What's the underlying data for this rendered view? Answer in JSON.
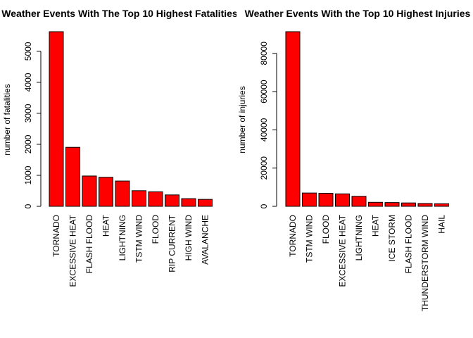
{
  "chart_data": [
    {
      "type": "bar",
      "title": "Weather Events With The Top 10 Highest Fatalities",
      "xlabel": "",
      "ylabel": "number of fatalities",
      "ylim": [
        0,
        5633
      ],
      "yticks": [
        0,
        1000,
        2000,
        3000,
        4000,
        5000
      ],
      "categories": [
        "TORNADO",
        "EXCESSIVE HEAT",
        "FLASH FLOOD",
        "HEAT",
        "LIGHTNING",
        "TSTM WIND",
        "FLOOD",
        "RIP CURRENT",
        "HIGH WIND",
        "AVALANCHE"
      ],
      "values": [
        5633,
        1903,
        978,
        937,
        816,
        504,
        470,
        368,
        248,
        224
      ],
      "bar_color": "#ff0000"
    },
    {
      "type": "bar",
      "title": "Weather Events With the Top 10 Highest Injuries",
      "xlabel": "",
      "ylabel": "number of injuries",
      "ylim": [
        0,
        91346
      ],
      "yticks": [
        0,
        20000,
        40000,
        60000,
        80000
      ],
      "categories": [
        "TORNADO",
        "TSTM WIND",
        "FLOOD",
        "EXCESSIVE HEAT",
        "LIGHTNING",
        "HEAT",
        "ICE STORM",
        "FLASH FLOOD",
        "THUNDERSTORM WIND",
        "HAIL"
      ],
      "values": [
        91346,
        6957,
        6789,
        6525,
        5230,
        2100,
        1975,
        1777,
        1488,
        1361
      ],
      "bar_color": "#ff0000"
    }
  ]
}
